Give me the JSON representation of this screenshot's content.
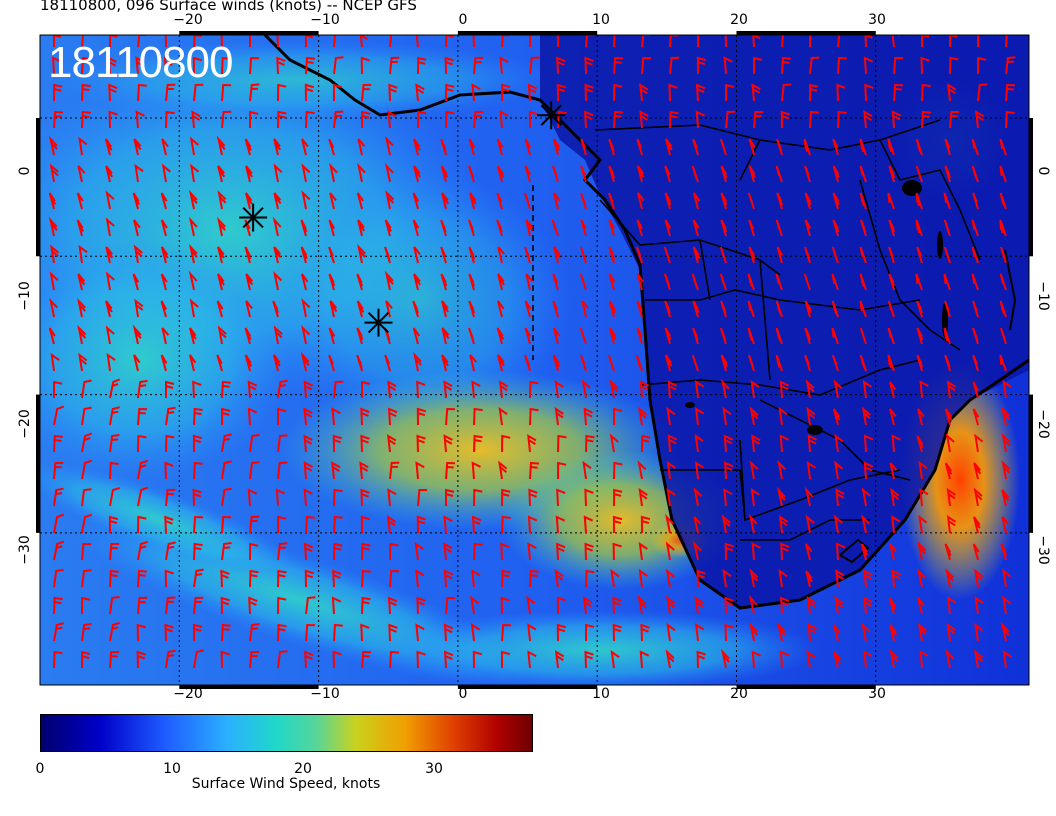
{
  "title": "18110800, 096 Surface winds (knots) -- NCEP GFS",
  "date_stamp": "18110800",
  "axes": {
    "lon_ticks": [
      "−20",
      "−10",
      "0",
      "10",
      "20",
      "30"
    ],
    "lat_ticks": [
      "0",
      "−10",
      "−20",
      "−30"
    ]
  },
  "colorbar": {
    "label": "Surface Wind Speed, knots",
    "ticks": [
      "0",
      "10",
      "20",
      "30"
    ],
    "range": [
      0,
      37
    ],
    "colors": [
      "#00006e",
      "#0000c8",
      "#1e5aff",
      "#2bb0ff",
      "#20d8c8",
      "#56d59a",
      "#c8d21e",
      "#f0a000",
      "#e04000",
      "#b00000",
      "#6e0000"
    ]
  },
  "map": {
    "lon_range": [
      -30,
      41
    ],
    "lat_range": [
      -41,
      6
    ],
    "barb_color": "#ff0000",
    "coast_color": "#000000",
    "markers": [
      {
        "name": "storm-marker-1",
        "lon": -14.7,
        "lat": -7.2
      },
      {
        "name": "storm-marker-2",
        "lon": -5.7,
        "lat": -14.8
      },
      {
        "name": "storm-marker-3",
        "lon": 6.7,
        "lat": 0.2
      }
    ]
  }
}
